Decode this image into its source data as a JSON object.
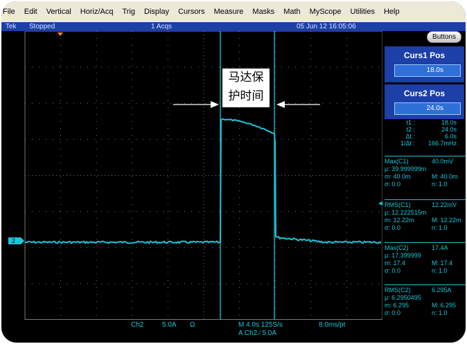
{
  "menu": [
    "File",
    "Edit",
    "Vertical",
    "Horiz/Acq",
    "Trig",
    "Display",
    "Cursors",
    "Measure",
    "Masks",
    "Math",
    "MyScope",
    "Utilities",
    "Help"
  ],
  "status": {
    "brand": "Tek",
    "run_state": "Stopped",
    "acqs": "1 Acqs",
    "datetime": "05 Jun 12 16:05:06"
  },
  "annotation": {
    "line1": "马达保",
    "line2": "护时间"
  },
  "channel_marker": "2",
  "bottom": {
    "channel": "Ch2",
    "scale": "5.0A",
    "coupling": "Ω",
    "timebase": "M 4.0s 125S/s",
    "per_pt": "8.0ms/pt",
    "trigger": "A Ch2  ∕  5.0A"
  },
  "panel": {
    "buttons_label": "Buttons",
    "curs1_title": "Curs1 Pos",
    "curs1_value": "18.0s",
    "curs2_title": "Curs2 Pos",
    "curs2_value": "24.0s",
    "cursor_info": [
      {
        "label": "t1 :",
        "value": "18.0s"
      },
      {
        "label": "t2 :",
        "value": "24.0s"
      },
      {
        "label": "Δt :",
        "value": "6.0s"
      },
      {
        "label": "1/Δt :",
        "value": "166.7mHz"
      }
    ],
    "measurements": [
      {
        "title_l": "Max(C1)",
        "title_r": "40.0mV",
        "mu": "μ: 39.999999m",
        "m_l": "m: 40.0m",
        "m_r": "M: 40.0m",
        "s_l": "σ: 0.0",
        "s_r": "n: 1.0"
      },
      {
        "title_l": "RMS(C1)",
        "title_r": "12.22mV",
        "mu": "μ: 12.222515m",
        "m_l": "m: 12.22m",
        "m_r": "M: 12.22m",
        "s_l": "σ: 0.0",
        "s_r": "n: 1.0"
      },
      {
        "title_l": "Max(C2)",
        "title_r": "17.4A",
        "mu": "μ: 17.399999",
        "m_l": "m: 17.4",
        "m_r": "M: 17.4",
        "s_l": "σ: 0.0",
        "s_r": "n: 1.0"
      },
      {
        "title_l": "RMS(C2)",
        "title_r": "6.295A",
        "mu": "μ: 6.2950495",
        "m_l": "m: 6.295",
        "m_r": "M: 6.295",
        "s_l": "σ: 0.0",
        "s_r": "n: 1.0"
      }
    ]
  },
  "colors": {
    "trace": "#19c7d8",
    "grid": "#7a7a7a",
    "cursor": "#19c7d8",
    "status_bar": "#1c3fa8"
  }
}
